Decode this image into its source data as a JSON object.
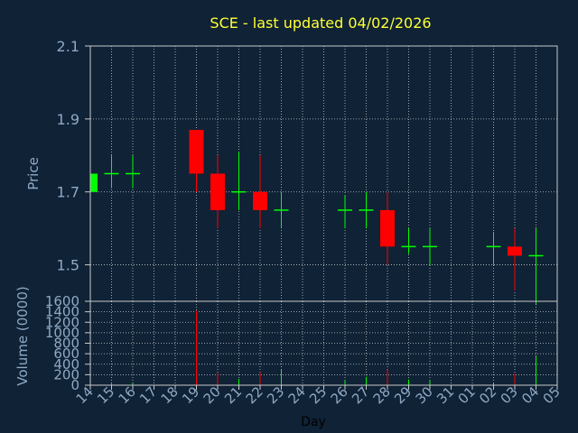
{
  "colors": {
    "background": "#0f2236",
    "title": "#ffff33",
    "axis_text": "#8fa9c4",
    "grid": "#c8c8c8",
    "frame": "#c8c8c8",
    "up": "#00ff00",
    "down": "#ff0000"
  },
  "chart_data": [
    {
      "type": "candlestick",
      "title": "SCE - last updated 04/02/2026",
      "ylabel": "Price",
      "ylim": [
        1.4,
        2.1
      ],
      "yticks": [
        1.5,
        1.7,
        1.9,
        2.1
      ],
      "ytick_labels": [
        "1.5",
        "1.7",
        "1.9",
        "2.1"
      ],
      "grid": true,
      "categories": [
        "14",
        "15",
        "16",
        "17",
        "18",
        "19",
        "20",
        "21",
        "22",
        "23",
        "24",
        "25",
        "26",
        "27",
        "28",
        "29",
        "30",
        "31",
        "01",
        "02",
        "03",
        "04",
        "05"
      ],
      "candles": [
        {
          "day": "14",
          "open": 1.7,
          "high": 1.75,
          "low": 1.7,
          "close": 1.75
        },
        {
          "day": "15",
          "open": 1.75,
          "high": 1.8,
          "low": 1.71,
          "close": 1.75
        },
        {
          "day": "16",
          "open": 1.75,
          "high": 1.8,
          "low": 1.71,
          "close": 1.75
        },
        {
          "day": "19",
          "open": 1.87,
          "high": 1.87,
          "low": 1.7,
          "close": 1.75
        },
        {
          "day": "20",
          "open": 1.75,
          "high": 1.8,
          "low": 1.6,
          "close": 1.65
        },
        {
          "day": "21",
          "open": 1.7,
          "high": 1.81,
          "low": 1.65,
          "close": 1.7
        },
        {
          "day": "22",
          "open": 1.7,
          "high": 1.8,
          "low": 1.6,
          "close": 1.65
        },
        {
          "day": "23",
          "open": 1.65,
          "high": 1.7,
          "low": 1.6,
          "close": 1.65
        },
        {
          "day": "26",
          "open": 1.65,
          "high": 1.69,
          "low": 1.6,
          "close": 1.65
        },
        {
          "day": "27",
          "open": 1.65,
          "high": 1.7,
          "low": 1.6,
          "close": 1.65
        },
        {
          "day": "28",
          "open": 1.65,
          "high": 1.7,
          "low": 1.5,
          "close": 1.55
        },
        {
          "day": "29",
          "open": 1.55,
          "high": 1.6,
          "low": 1.53,
          "close": 1.55
        },
        {
          "day": "30",
          "open": 1.55,
          "high": 1.6,
          "low": 1.5,
          "close": 1.55
        },
        {
          "day": "02",
          "open": 1.55,
          "high": 1.59,
          "low": 1.5,
          "close": 1.55
        },
        {
          "day": "03",
          "open": 1.55,
          "high": 1.6,
          "low": 1.43,
          "close": 1.525
        },
        {
          "day": "04",
          "open": 1.525,
          "high": 1.6,
          "low": 1.39,
          "close": 1.525
        }
      ]
    },
    {
      "type": "bar",
      "ylabel": "Volume (0000)",
      "xlabel": "Day",
      "ylim": [
        0,
        1600
      ],
      "yticks": [
        0,
        200,
        400,
        600,
        800,
        1000,
        1200,
        1400,
        1600
      ],
      "ytick_labels": [
        "0",
        "200",
        "400",
        "600",
        "800",
        "1000",
        "1200",
        "1400",
        "1600"
      ],
      "grid": true,
      "categories": [
        "14",
        "15",
        "16",
        "17",
        "18",
        "19",
        "20",
        "21",
        "22",
        "23",
        "24",
        "25",
        "26",
        "27",
        "28",
        "29",
        "30",
        "31",
        "01",
        "02",
        "03",
        "04",
        "05"
      ],
      "bars": [
        {
          "day": "14",
          "value": 20,
          "color": "up"
        },
        {
          "day": "15",
          "value": 30,
          "color": "up"
        },
        {
          "day": "16",
          "value": 40,
          "color": "up"
        },
        {
          "day": "19",
          "value": 1420,
          "color": "down"
        },
        {
          "day": "20",
          "value": 230,
          "color": "down"
        },
        {
          "day": "21",
          "value": 120,
          "color": "up"
        },
        {
          "day": "22",
          "value": 250,
          "color": "down"
        },
        {
          "day": "23",
          "value": 300,
          "color": "up"
        },
        {
          "day": "26",
          "value": 90,
          "color": "up"
        },
        {
          "day": "27",
          "value": 160,
          "color": "up"
        },
        {
          "day": "28",
          "value": 300,
          "color": "down"
        },
        {
          "day": "29",
          "value": 110,
          "color": "up"
        },
        {
          "day": "30",
          "value": 90,
          "color": "up"
        },
        {
          "day": "02",
          "value": 40,
          "color": "up"
        },
        {
          "day": "03",
          "value": 220,
          "color": "down"
        },
        {
          "day": "04",
          "value": 550,
          "color": "up"
        }
      ]
    }
  ]
}
